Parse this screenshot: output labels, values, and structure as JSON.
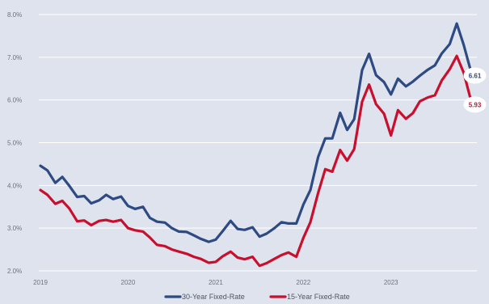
{
  "chart_data": {
    "type": "line",
    "title": "",
    "xlabel": "",
    "ylabel": "",
    "ylim": [
      2.0,
      8.0
    ],
    "xlim": [
      2019.0,
      2023.98
    ],
    "y_ticks": [
      {
        "value": 2.0,
        "label": "2.0%"
      },
      {
        "value": 3.0,
        "label": "3.0%"
      },
      {
        "value": 4.0,
        "label": "4.0%"
      },
      {
        "value": 5.0,
        "label": "5.0%"
      },
      {
        "value": 6.0,
        "label": "6.0%"
      },
      {
        "value": 7.0,
        "label": "7.0%"
      },
      {
        "value": 8.0,
        "label": "8.0%"
      }
    ],
    "x_ticks": [
      {
        "value": 2019,
        "label": "2019"
      },
      {
        "value": 2020,
        "label": "2020"
      },
      {
        "value": 2021,
        "label": "2021"
      },
      {
        "value": 2022,
        "label": "2022"
      },
      {
        "value": 2023,
        "label": "2023"
      }
    ],
    "grid": true,
    "legend_position": "bottom-center",
    "series": [
      {
        "name": "30-Year Fixed-Rate",
        "color": "#2e4a82",
        "end_label": "6.61",
        "points": [
          [
            2019.0,
            4.46
          ],
          [
            2019.08,
            4.35
          ],
          [
            2019.17,
            4.06
          ],
          [
            2019.25,
            4.2
          ],
          [
            2019.33,
            3.99
          ],
          [
            2019.42,
            3.73
          ],
          [
            2019.5,
            3.75
          ],
          [
            2019.58,
            3.58
          ],
          [
            2019.67,
            3.65
          ],
          [
            2019.75,
            3.78
          ],
          [
            2019.83,
            3.68
          ],
          [
            2019.92,
            3.74
          ],
          [
            2020.0,
            3.52
          ],
          [
            2020.08,
            3.45
          ],
          [
            2020.17,
            3.5
          ],
          [
            2020.25,
            3.24
          ],
          [
            2020.33,
            3.15
          ],
          [
            2020.42,
            3.13
          ],
          [
            2020.5,
            3.0
          ],
          [
            2020.58,
            2.92
          ],
          [
            2020.67,
            2.91
          ],
          [
            2020.75,
            2.83
          ],
          [
            2020.83,
            2.75
          ],
          [
            2020.92,
            2.68
          ],
          [
            2021.0,
            2.73
          ],
          [
            2021.08,
            2.93
          ],
          [
            2021.17,
            3.17
          ],
          [
            2021.25,
            2.98
          ],
          [
            2021.33,
            2.96
          ],
          [
            2021.42,
            3.02
          ],
          [
            2021.5,
            2.8
          ],
          [
            2021.58,
            2.87
          ],
          [
            2021.67,
            3.0
          ],
          [
            2021.75,
            3.14
          ],
          [
            2021.83,
            3.11
          ],
          [
            2021.92,
            3.11
          ],
          [
            2022.0,
            3.55
          ],
          [
            2022.08,
            3.89
          ],
          [
            2022.17,
            4.67
          ],
          [
            2022.25,
            5.1
          ],
          [
            2022.33,
            5.1
          ],
          [
            2022.42,
            5.7
          ],
          [
            2022.5,
            5.3
          ],
          [
            2022.58,
            5.55
          ],
          [
            2022.67,
            6.7
          ],
          [
            2022.75,
            7.08
          ],
          [
            2022.83,
            6.58
          ],
          [
            2022.92,
            6.42
          ],
          [
            2023.0,
            6.13
          ],
          [
            2023.08,
            6.5
          ],
          [
            2023.17,
            6.32
          ],
          [
            2023.25,
            6.43
          ],
          [
            2023.33,
            6.57
          ],
          [
            2023.42,
            6.71
          ],
          [
            2023.5,
            6.81
          ],
          [
            2023.58,
            7.09
          ],
          [
            2023.67,
            7.31
          ],
          [
            2023.75,
            7.79
          ],
          [
            2023.83,
            7.29
          ],
          [
            2023.92,
            6.61
          ]
        ]
      },
      {
        "name": "15-Year Fixed-Rate",
        "color": "#c8102e",
        "end_label": "5.93",
        "points": [
          [
            2019.0,
            3.89
          ],
          [
            2019.08,
            3.78
          ],
          [
            2019.17,
            3.57
          ],
          [
            2019.25,
            3.64
          ],
          [
            2019.33,
            3.46
          ],
          [
            2019.42,
            3.16
          ],
          [
            2019.5,
            3.18
          ],
          [
            2019.58,
            3.07
          ],
          [
            2019.67,
            3.17
          ],
          [
            2019.75,
            3.19
          ],
          [
            2019.83,
            3.15
          ],
          [
            2019.92,
            3.19
          ],
          [
            2020.0,
            3.0
          ],
          [
            2020.08,
            2.95
          ],
          [
            2020.17,
            2.92
          ],
          [
            2020.25,
            2.78
          ],
          [
            2020.33,
            2.61
          ],
          [
            2020.42,
            2.58
          ],
          [
            2020.5,
            2.5
          ],
          [
            2020.58,
            2.45
          ],
          [
            2020.67,
            2.4
          ],
          [
            2020.75,
            2.33
          ],
          [
            2020.83,
            2.28
          ],
          [
            2020.92,
            2.19
          ],
          [
            2021.0,
            2.21
          ],
          [
            2021.08,
            2.34
          ],
          [
            2021.17,
            2.45
          ],
          [
            2021.25,
            2.31
          ],
          [
            2021.33,
            2.27
          ],
          [
            2021.42,
            2.33
          ],
          [
            2021.5,
            2.12
          ],
          [
            2021.58,
            2.18
          ],
          [
            2021.67,
            2.28
          ],
          [
            2021.75,
            2.37
          ],
          [
            2021.83,
            2.43
          ],
          [
            2021.92,
            2.33
          ],
          [
            2022.0,
            2.77
          ],
          [
            2022.08,
            3.14
          ],
          [
            2022.17,
            3.83
          ],
          [
            2022.25,
            4.38
          ],
          [
            2022.33,
            4.32
          ],
          [
            2022.42,
            4.83
          ],
          [
            2022.5,
            4.58
          ],
          [
            2022.58,
            4.85
          ],
          [
            2022.67,
            5.96
          ],
          [
            2022.75,
            6.36
          ],
          [
            2022.83,
            5.9
          ],
          [
            2022.92,
            5.68
          ],
          [
            2023.0,
            5.17
          ],
          [
            2023.08,
            5.76
          ],
          [
            2023.17,
            5.56
          ],
          [
            2023.25,
            5.69
          ],
          [
            2023.33,
            5.97
          ],
          [
            2023.42,
            6.06
          ],
          [
            2023.5,
            6.11
          ],
          [
            2023.58,
            6.46
          ],
          [
            2023.67,
            6.72
          ],
          [
            2023.75,
            7.03
          ],
          [
            2023.83,
            6.64
          ],
          [
            2023.92,
            5.93
          ]
        ]
      }
    ]
  }
}
